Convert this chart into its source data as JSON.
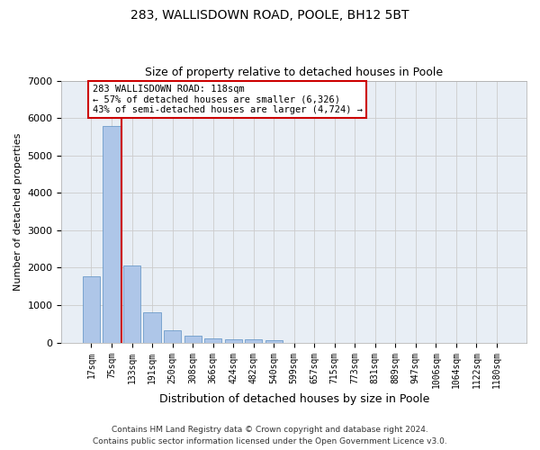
{
  "title1": "283, WALLISDOWN ROAD, POOLE, BH12 5BT",
  "title2": "Size of property relative to detached houses in Poole",
  "xlabel": "Distribution of detached houses by size in Poole",
  "ylabel": "Number of detached properties",
  "bin_labels": [
    "17sqm",
    "75sqm",
    "133sqm",
    "191sqm",
    "250sqm",
    "308sqm",
    "366sqm",
    "424sqm",
    "482sqm",
    "540sqm",
    "599sqm",
    "657sqm",
    "715sqm",
    "773sqm",
    "831sqm",
    "889sqm",
    "947sqm",
    "1006sqm",
    "1064sqm",
    "1122sqm",
    "1180sqm"
  ],
  "bar_values": [
    1780,
    5780,
    2060,
    820,
    335,
    185,
    105,
    95,
    85,
    60,
    0,
    0,
    0,
    0,
    0,
    0,
    0,
    0,
    0,
    0,
    0
  ],
  "bar_color": "#aec6e8",
  "bar_edge_color": "#5a8fc2",
  "grid_color": "#cccccc",
  "bg_color": "#e8eef5",
  "annotation_text": "283 WALLISDOWN ROAD: 118sqm\n← 57% of detached houses are smaller (6,326)\n43% of semi-detached houses are larger (4,724) →",
  "annotation_box_color": "#cc0000",
  "vline_color": "#cc0000",
  "ylim": [
    0,
    7000
  ],
  "yticks": [
    0,
    1000,
    2000,
    3000,
    4000,
    5000,
    6000,
    7000
  ],
  "footer1": "Contains HM Land Registry data © Crown copyright and database right 2024.",
  "footer2": "Contains public sector information licensed under the Open Government Licence v3.0.",
  "title1_fontsize": 10,
  "title2_fontsize": 9,
  "xlabel_fontsize": 9,
  "ylabel_fontsize": 8,
  "tick_fontsize": 7,
  "footer_fontsize": 6.5,
  "annot_fontsize": 7.5
}
